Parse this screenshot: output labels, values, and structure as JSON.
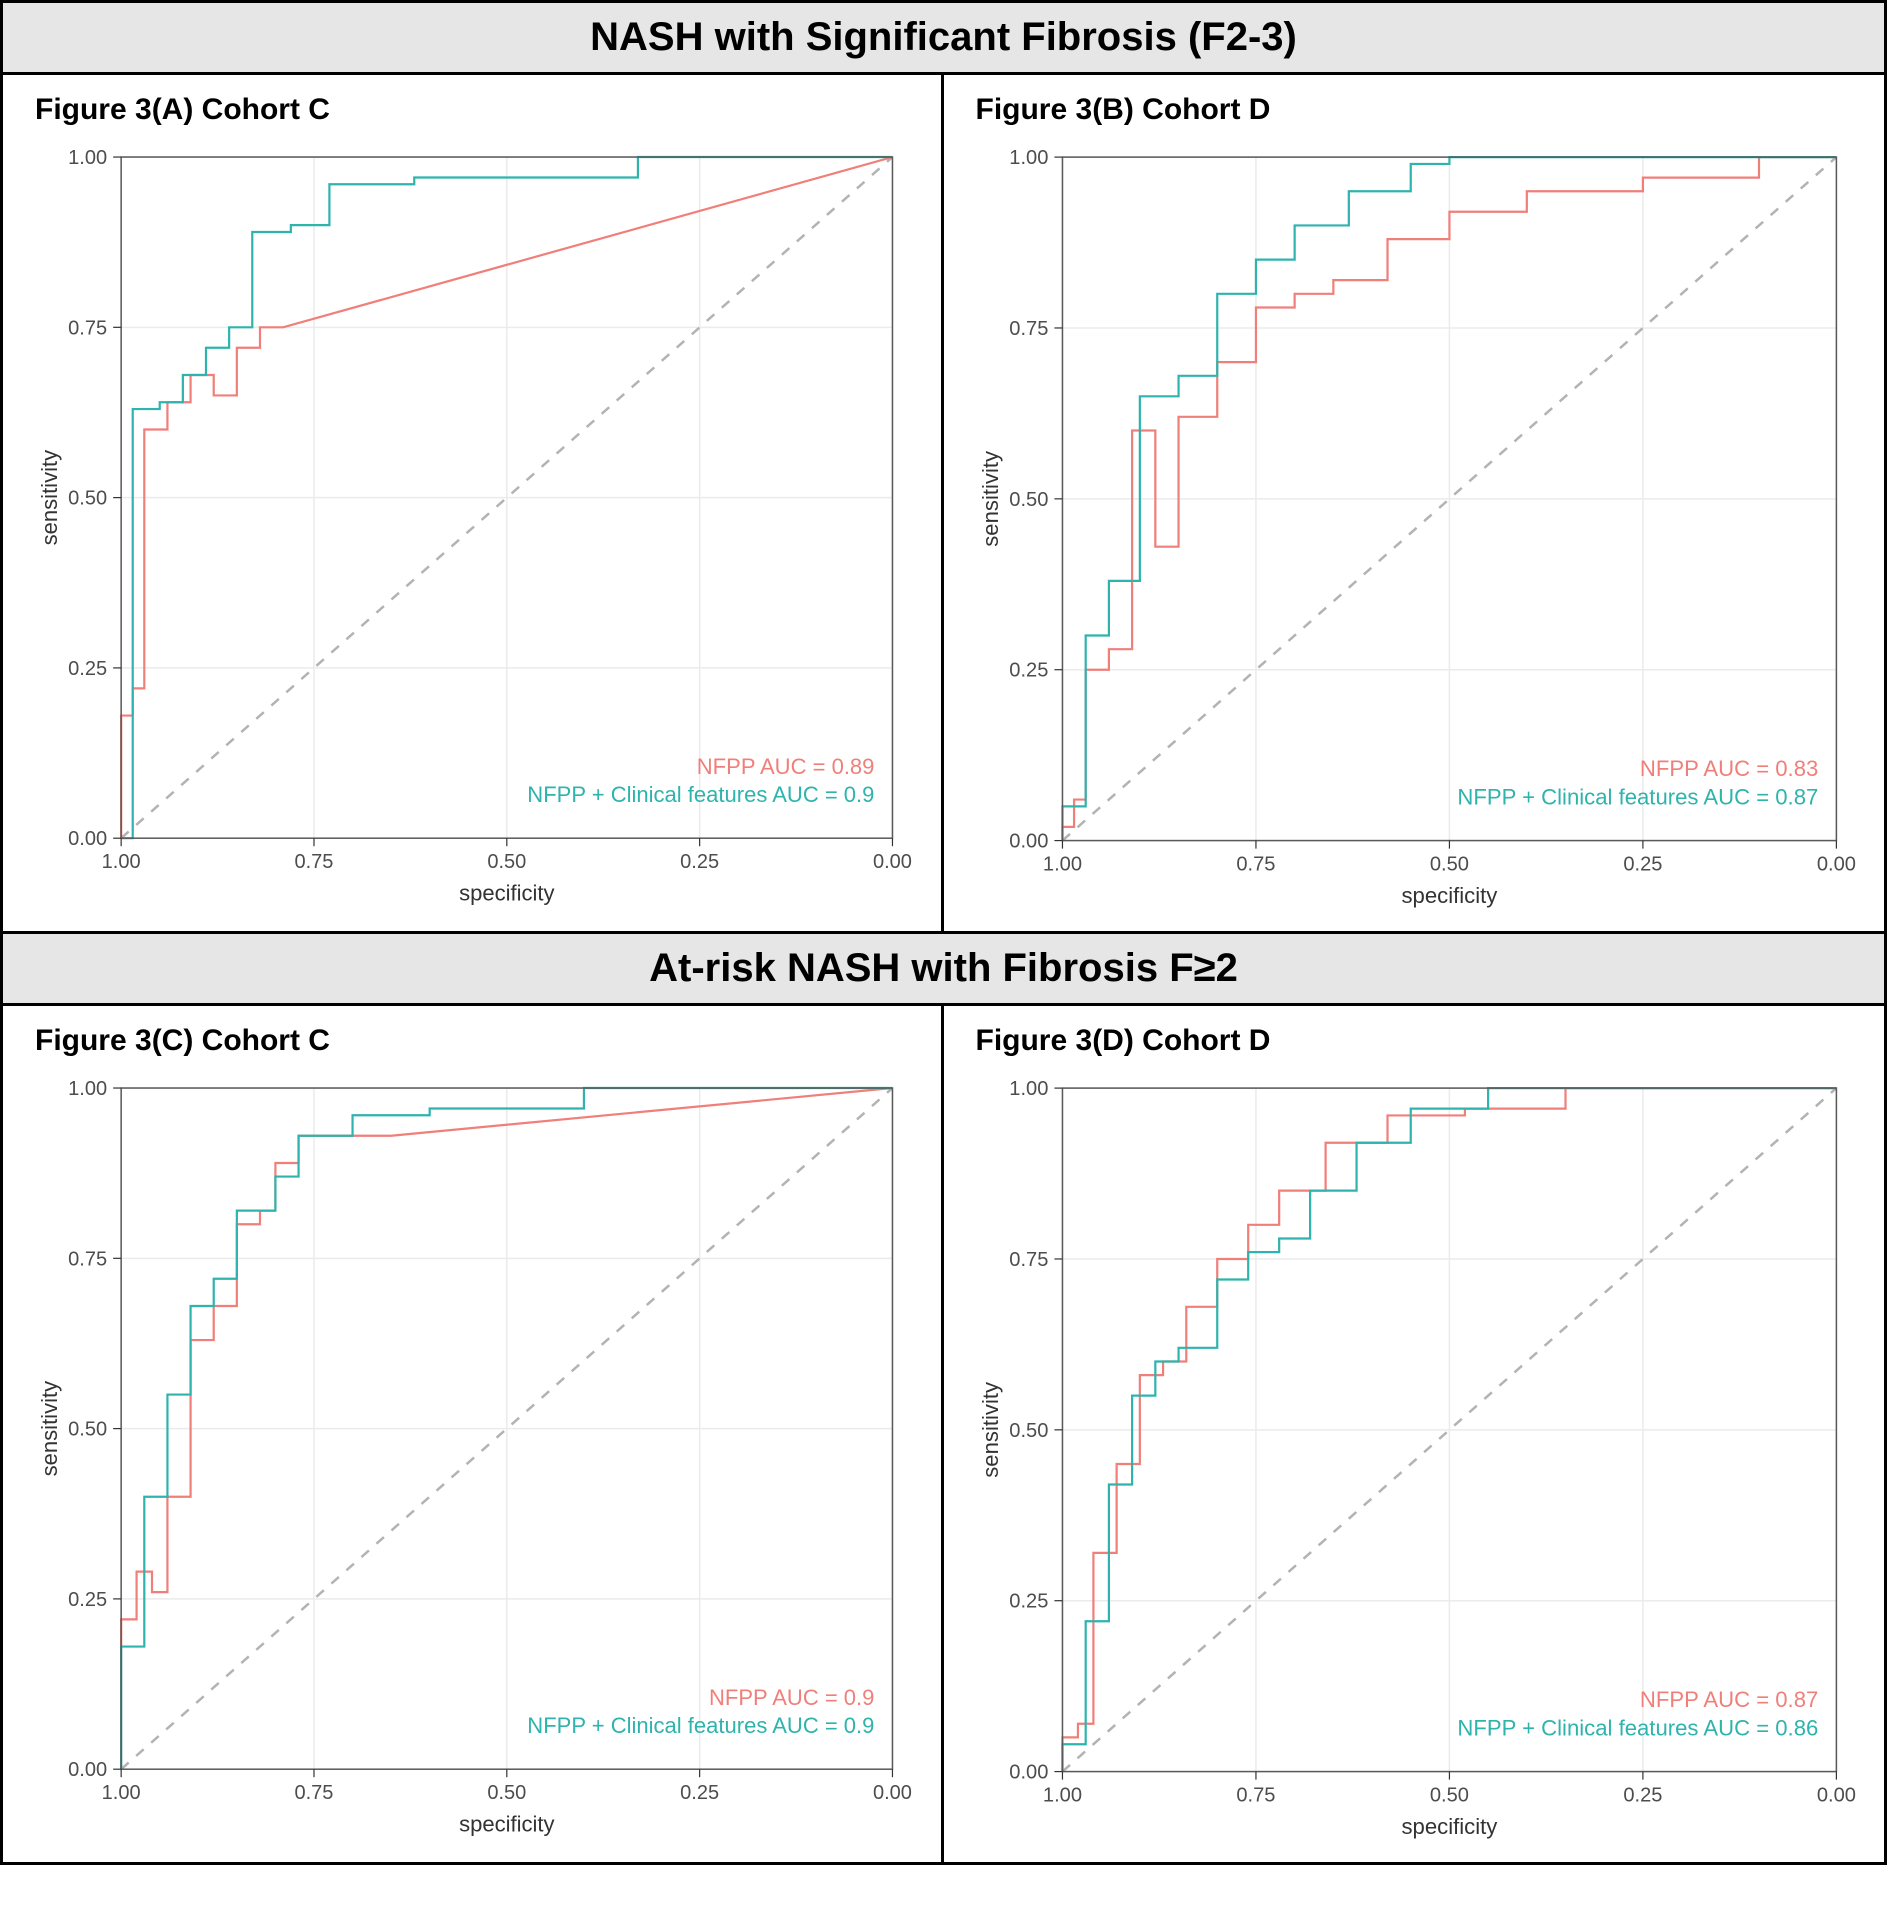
{
  "layout": {
    "header_bg": "#e6e6e6",
    "header_fontsize": 40,
    "panel_title_fontsize": 30,
    "axis_label_fontsize": 22,
    "tick_fontsize": 20,
    "legend_fontsize": 22,
    "plot_bg": "#ffffff",
    "panel_border_color": "#595959",
    "grid_color": "#ebebeb",
    "diag_color": "#b3b3b3",
    "diag_dash": "10,10",
    "diag_width": 2.5,
    "line_width": 2.2,
    "colors": {
      "nfpp": "#f07f7a",
      "nfpp_clin": "#2fb3ad"
    },
    "x_ticks": [
      1.0,
      0.75,
      0.5,
      0.25,
      0.0
    ],
    "y_ticks": [
      0.0,
      0.25,
      0.5,
      0.75,
      1.0
    ],
    "x_label": "specificity",
    "y_label": "sensitivity"
  },
  "sections": [
    {
      "title": "NASH with Significant Fibrosis (F2-3)"
    },
    {
      "title": "At-risk NASH with Fibrosis F≥2"
    }
  ],
  "panels": [
    {
      "id": "A",
      "title": "Figure 3(A) Cohort C",
      "legend": [
        {
          "key": "nfpp",
          "text": "NFPP AUC = 0.89"
        },
        {
          "key": "nfpp_clin",
          "text": "NFPP + Clinical features AUC = 0.9"
        }
      ],
      "series": {
        "nfpp": [
          [
            1.0,
            0.0
          ],
          [
            1.0,
            0.18
          ],
          [
            0.985,
            0.18
          ],
          [
            0.985,
            0.22
          ],
          [
            0.97,
            0.22
          ],
          [
            0.97,
            0.6
          ],
          [
            0.94,
            0.6
          ],
          [
            0.94,
            0.64
          ],
          [
            0.91,
            0.64
          ],
          [
            0.91,
            0.68
          ],
          [
            0.88,
            0.68
          ],
          [
            0.88,
            0.65
          ],
          [
            0.85,
            0.65
          ],
          [
            0.85,
            0.72
          ],
          [
            0.82,
            0.72
          ],
          [
            0.82,
            0.75
          ],
          [
            0.79,
            0.75
          ],
          [
            0.0,
            1.0
          ]
        ],
        "nfpp_clin": [
          [
            1.0,
            0.0
          ],
          [
            0.985,
            0.0
          ],
          [
            0.985,
            0.63
          ],
          [
            0.95,
            0.63
          ],
          [
            0.95,
            0.64
          ],
          [
            0.92,
            0.64
          ],
          [
            0.92,
            0.68
          ],
          [
            0.89,
            0.68
          ],
          [
            0.89,
            0.72
          ],
          [
            0.86,
            0.72
          ],
          [
            0.86,
            0.75
          ],
          [
            0.83,
            0.75
          ],
          [
            0.83,
            0.89
          ],
          [
            0.78,
            0.89
          ],
          [
            0.78,
            0.9
          ],
          [
            0.73,
            0.9
          ],
          [
            0.73,
            0.96
          ],
          [
            0.62,
            0.96
          ],
          [
            0.62,
            0.97
          ],
          [
            0.33,
            0.97
          ],
          [
            0.33,
            1.0
          ],
          [
            0.0,
            1.0
          ]
        ]
      }
    },
    {
      "id": "B",
      "title": "Figure 3(B) Cohort D",
      "legend": [
        {
          "key": "nfpp",
          "text": "NFPP AUC = 0.83"
        },
        {
          "key": "nfpp_clin",
          "text": "NFPP + Clinical features AUC = 0.87"
        }
      ],
      "series": {
        "nfpp": [
          [
            1.0,
            0.0
          ],
          [
            1.0,
            0.02
          ],
          [
            0.985,
            0.02
          ],
          [
            0.985,
            0.06
          ],
          [
            0.97,
            0.06
          ],
          [
            0.97,
            0.25
          ],
          [
            0.94,
            0.25
          ],
          [
            0.94,
            0.28
          ],
          [
            0.91,
            0.28
          ],
          [
            0.91,
            0.6
          ],
          [
            0.88,
            0.6
          ],
          [
            0.88,
            0.43
          ],
          [
            0.85,
            0.43
          ],
          [
            0.85,
            0.62
          ],
          [
            0.8,
            0.62
          ],
          [
            0.8,
            0.7
          ],
          [
            0.75,
            0.7
          ],
          [
            0.75,
            0.78
          ],
          [
            0.7,
            0.78
          ],
          [
            0.7,
            0.8
          ],
          [
            0.65,
            0.8
          ],
          [
            0.65,
            0.82
          ],
          [
            0.58,
            0.82
          ],
          [
            0.58,
            0.88
          ],
          [
            0.5,
            0.88
          ],
          [
            0.5,
            0.92
          ],
          [
            0.4,
            0.92
          ],
          [
            0.4,
            0.95
          ],
          [
            0.25,
            0.95
          ],
          [
            0.25,
            0.97
          ],
          [
            0.1,
            0.97
          ],
          [
            0.1,
            1.0
          ],
          [
            0.0,
            1.0
          ]
        ],
        "nfpp_clin": [
          [
            1.0,
            0.0
          ],
          [
            1.0,
            0.05
          ],
          [
            0.97,
            0.05
          ],
          [
            0.97,
            0.3
          ],
          [
            0.94,
            0.3
          ],
          [
            0.94,
            0.38
          ],
          [
            0.9,
            0.38
          ],
          [
            0.9,
            0.65
          ],
          [
            0.85,
            0.65
          ],
          [
            0.85,
            0.68
          ],
          [
            0.8,
            0.68
          ],
          [
            0.8,
            0.8
          ],
          [
            0.75,
            0.8
          ],
          [
            0.75,
            0.85
          ],
          [
            0.7,
            0.85
          ],
          [
            0.7,
            0.9
          ],
          [
            0.63,
            0.9
          ],
          [
            0.63,
            0.95
          ],
          [
            0.55,
            0.95
          ],
          [
            0.55,
            0.99
          ],
          [
            0.5,
            0.99
          ],
          [
            0.5,
            1.0
          ],
          [
            0.0,
            1.0
          ]
        ]
      }
    },
    {
      "id": "C",
      "title": "Figure 3(C) Cohort C",
      "legend": [
        {
          "key": "nfpp",
          "text": "NFPP AUC = 0.9"
        },
        {
          "key": "nfpp_clin",
          "text": "NFPP + Clinical features AUC = 0.9"
        }
      ],
      "series": {
        "nfpp": [
          [
            1.0,
            0.0
          ],
          [
            1.0,
            0.22
          ],
          [
            0.98,
            0.22
          ],
          [
            0.98,
            0.29
          ],
          [
            0.96,
            0.29
          ],
          [
            0.96,
            0.26
          ],
          [
            0.94,
            0.26
          ],
          [
            0.94,
            0.4
          ],
          [
            0.91,
            0.4
          ],
          [
            0.91,
            0.63
          ],
          [
            0.88,
            0.63
          ],
          [
            0.88,
            0.68
          ],
          [
            0.85,
            0.68
          ],
          [
            0.85,
            0.8
          ],
          [
            0.82,
            0.8
          ],
          [
            0.82,
            0.82
          ],
          [
            0.8,
            0.82
          ],
          [
            0.8,
            0.89
          ],
          [
            0.77,
            0.89
          ],
          [
            0.77,
            0.93
          ],
          [
            0.65,
            0.93
          ],
          [
            0.65,
            0.93
          ],
          [
            0.0,
            1.0
          ]
        ],
        "nfpp_clin": [
          [
            1.0,
            0.0
          ],
          [
            1.0,
            0.18
          ],
          [
            0.97,
            0.18
          ],
          [
            0.97,
            0.4
          ],
          [
            0.94,
            0.4
          ],
          [
            0.94,
            0.55
          ],
          [
            0.91,
            0.55
          ],
          [
            0.91,
            0.68
          ],
          [
            0.88,
            0.68
          ],
          [
            0.88,
            0.72
          ],
          [
            0.85,
            0.72
          ],
          [
            0.85,
            0.82
          ],
          [
            0.8,
            0.82
          ],
          [
            0.8,
            0.87
          ],
          [
            0.77,
            0.87
          ],
          [
            0.77,
            0.93
          ],
          [
            0.7,
            0.93
          ],
          [
            0.7,
            0.96
          ],
          [
            0.6,
            0.96
          ],
          [
            0.6,
            0.97
          ],
          [
            0.4,
            0.97
          ],
          [
            0.4,
            1.0
          ],
          [
            0.0,
            1.0
          ]
        ]
      }
    },
    {
      "id": "D",
      "title": "Figure 3(D) Cohort D",
      "legend": [
        {
          "key": "nfpp",
          "text": "NFPP AUC = 0.87"
        },
        {
          "key": "nfpp_clin",
          "text": "NFPP + Clinical features AUC = 0.86"
        }
      ],
      "series": {
        "nfpp": [
          [
            1.0,
            0.0
          ],
          [
            1.0,
            0.05
          ],
          [
            0.98,
            0.05
          ],
          [
            0.98,
            0.07
          ],
          [
            0.96,
            0.07
          ],
          [
            0.96,
            0.32
          ],
          [
            0.93,
            0.32
          ],
          [
            0.93,
            0.45
          ],
          [
            0.9,
            0.45
          ],
          [
            0.9,
            0.58
          ],
          [
            0.87,
            0.58
          ],
          [
            0.87,
            0.6
          ],
          [
            0.84,
            0.6
          ],
          [
            0.84,
            0.68
          ],
          [
            0.8,
            0.68
          ],
          [
            0.8,
            0.75
          ],
          [
            0.76,
            0.75
          ],
          [
            0.76,
            0.8
          ],
          [
            0.72,
            0.8
          ],
          [
            0.72,
            0.85
          ],
          [
            0.66,
            0.85
          ],
          [
            0.66,
            0.92
          ],
          [
            0.58,
            0.92
          ],
          [
            0.58,
            0.96
          ],
          [
            0.48,
            0.96
          ],
          [
            0.48,
            0.97
          ],
          [
            0.35,
            0.97
          ],
          [
            0.35,
            1.0
          ],
          [
            0.0,
            1.0
          ]
        ],
        "nfpp_clin": [
          [
            1.0,
            0.0
          ],
          [
            1.0,
            0.04
          ],
          [
            0.97,
            0.04
          ],
          [
            0.97,
            0.22
          ],
          [
            0.94,
            0.22
          ],
          [
            0.94,
            0.42
          ],
          [
            0.91,
            0.42
          ],
          [
            0.91,
            0.55
          ],
          [
            0.88,
            0.55
          ],
          [
            0.88,
            0.6
          ],
          [
            0.85,
            0.6
          ],
          [
            0.85,
            0.62
          ],
          [
            0.8,
            0.62
          ],
          [
            0.8,
            0.72
          ],
          [
            0.76,
            0.72
          ],
          [
            0.76,
            0.76
          ],
          [
            0.72,
            0.76
          ],
          [
            0.72,
            0.78
          ],
          [
            0.68,
            0.78
          ],
          [
            0.68,
            0.85
          ],
          [
            0.62,
            0.85
          ],
          [
            0.62,
            0.92
          ],
          [
            0.55,
            0.92
          ],
          [
            0.55,
            0.97
          ],
          [
            0.45,
            0.97
          ],
          [
            0.45,
            1.0
          ],
          [
            0.0,
            1.0
          ]
        ]
      }
    }
  ]
}
